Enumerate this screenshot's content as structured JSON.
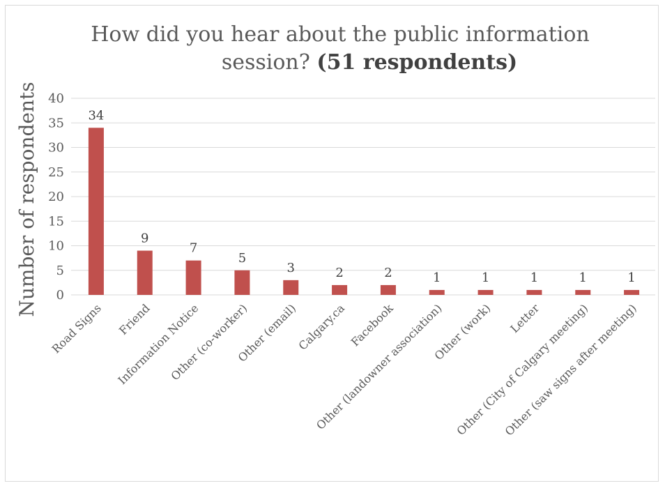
{
  "chart_data": {
    "type": "bar",
    "title": "How did you hear about the public information session?",
    "title_bold": "(51 respondents)",
    "xlabel": "",
    "ylabel": "Number of respondents",
    "ylim": [
      0,
      40
    ],
    "yticks": [
      "0",
      "5",
      "10",
      "15",
      "20",
      "25",
      "30",
      "35",
      "40"
    ],
    "grid": true,
    "bar_color": "#c0504d",
    "categories": [
      "Road Signs",
      "Friend",
      "Information Notice",
      "Other (co-worker)",
      "Other (email)",
      "Calgary.ca",
      "Facebook",
      "Other (landowner association)",
      "Other (work)",
      "Letter",
      "Other (City of Calgary meeting)",
      "Other (saw signs after meeting)"
    ],
    "values": [
      34,
      9,
      7,
      5,
      3,
      2,
      2,
      1,
      1,
      1,
      1,
      1
    ]
  }
}
